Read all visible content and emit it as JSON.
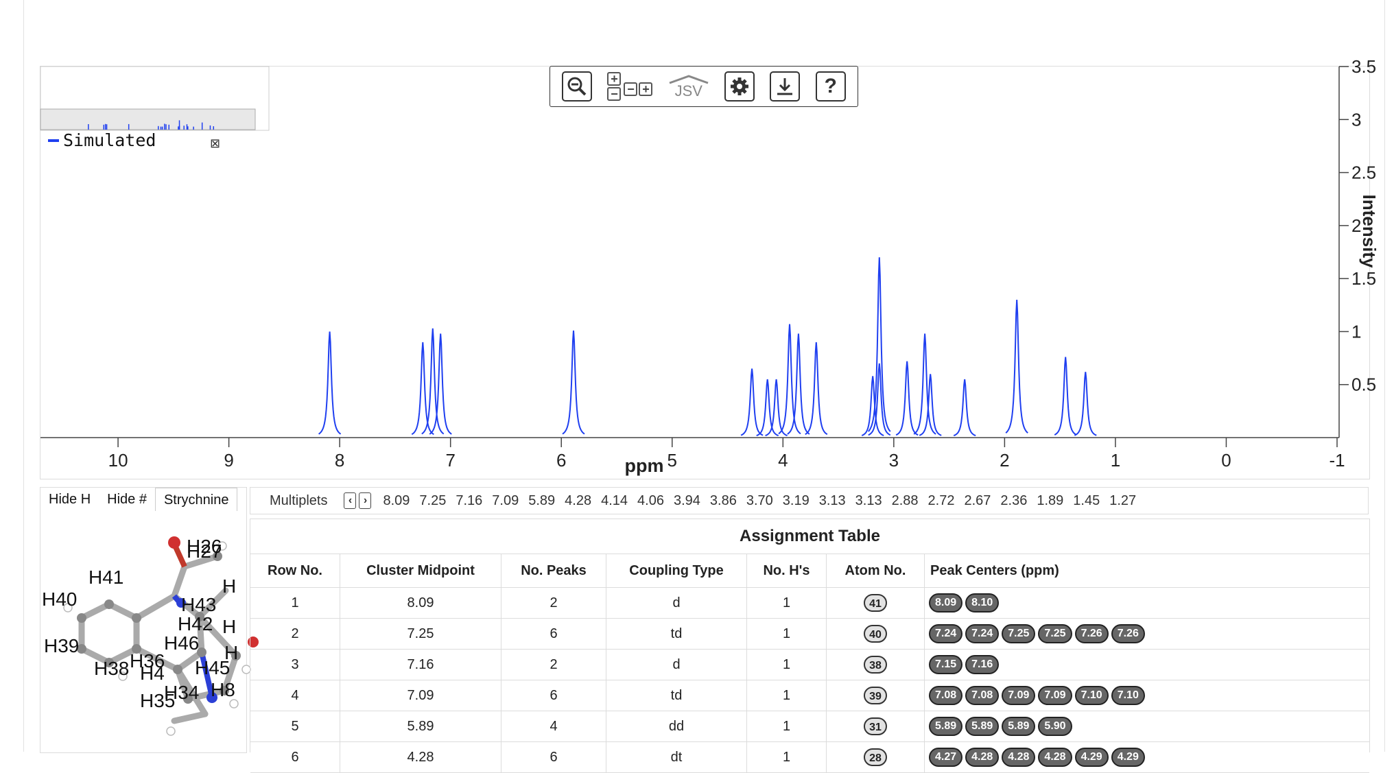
{
  "toolbar": {
    "jsv_label": "JSV",
    "help_label": "?"
  },
  "spectrum": {
    "legend_label": "Simulated",
    "legend_close": "⊠",
    "x_axis_label": "ppm",
    "y_axis_label": "Intensity",
    "x_ticks": [
      "10",
      "9",
      "8",
      "7",
      "6",
      "5",
      "4",
      "3",
      "2",
      "1",
      "0",
      "-1"
    ],
    "y_ticks": [
      "3.5",
      "3",
      "2.5",
      "2",
      "1.5",
      "1",
      "0.5"
    ],
    "line_color": "#1f3ff0"
  },
  "chart_data": {
    "type": "line",
    "title": "",
    "xlabel": "ppm",
    "ylabel": "Intensity",
    "xlim": [
      10.7,
      -1
    ],
    "ylim": [
      0,
      3.5
    ],
    "series": [
      {
        "name": "Simulated",
        "peaks_ppm": [
          8.09,
          7.25,
          7.16,
          7.09,
          5.89,
          4.28,
          4.14,
          4.06,
          3.94,
          3.86,
          3.7,
          3.19,
          3.13,
          3.13,
          2.88,
          2.72,
          2.67,
          2.36,
          1.89,
          1.45,
          1.27
        ],
        "peak_heights": [
          1.0,
          0.9,
          1.03,
          0.98,
          1.01,
          0.65,
          0.55,
          0.55,
          1.07,
          0.98,
          0.9,
          0.58,
          1.7,
          0.7,
          0.72,
          0.98,
          0.6,
          0.55,
          1.3,
          0.76,
          0.62
        ]
      }
    ]
  },
  "molecule": {
    "tabs": [
      "Hide H",
      "Hide #",
      "Strychnine"
    ],
    "atom_labels": [
      "H26",
      "H27",
      "H41",
      "H",
      "H40",
      "H43",
      "H42",
      "H",
      "H39",
      "H46",
      "H36",
      "H38",
      "H45",
      "H4",
      "H",
      "H35",
      "H34",
      "H8"
    ]
  },
  "multiplets": {
    "label": "Multiplets",
    "prev": "‹",
    "next": "›",
    "values": [
      "8.09",
      "7.25",
      "7.16",
      "7.09",
      "5.89",
      "4.28",
      "4.14",
      "4.06",
      "3.94",
      "3.86",
      "3.70",
      "3.19",
      "3.13",
      "3.13",
      "2.88",
      "2.72",
      "2.67",
      "2.36",
      "1.89",
      "1.45",
      "1.27"
    ]
  },
  "assignment": {
    "title": "Assignment Table",
    "headers": [
      "Row No.",
      "Cluster Midpoint",
      "No. Peaks",
      "Coupling Type",
      "No. H's",
      "Atom No.",
      "Peak Centers (ppm)"
    ],
    "rows": [
      {
        "row": "1",
        "mid": "8.09",
        "peaks": "2",
        "type": "d",
        "nh": "1",
        "atom": "41",
        "centers": [
          "8.09",
          "8.10"
        ]
      },
      {
        "row": "2",
        "mid": "7.25",
        "peaks": "6",
        "type": "td",
        "nh": "1",
        "atom": "40",
        "centers": [
          "7.24",
          "7.24",
          "7.25",
          "7.25",
          "7.26",
          "7.26"
        ]
      },
      {
        "row": "3",
        "mid": "7.16",
        "peaks": "2",
        "type": "d",
        "nh": "1",
        "atom": "38",
        "centers": [
          "7.15",
          "7.16"
        ]
      },
      {
        "row": "4",
        "mid": "7.09",
        "peaks": "6",
        "type": "td",
        "nh": "1",
        "atom": "39",
        "centers": [
          "7.08",
          "7.08",
          "7.09",
          "7.09",
          "7.10",
          "7.10"
        ]
      },
      {
        "row": "5",
        "mid": "5.89",
        "peaks": "4",
        "type": "dd",
        "nh": "1",
        "atom": "31",
        "centers": [
          "5.89",
          "5.89",
          "5.89",
          "5.90"
        ]
      },
      {
        "row": "6",
        "mid": "4.28",
        "peaks": "6",
        "type": "dt",
        "nh": "1",
        "atom": "28",
        "centers": [
          "4.27",
          "4.28",
          "4.28",
          "4.28",
          "4.29",
          "4.29"
        ]
      }
    ]
  }
}
